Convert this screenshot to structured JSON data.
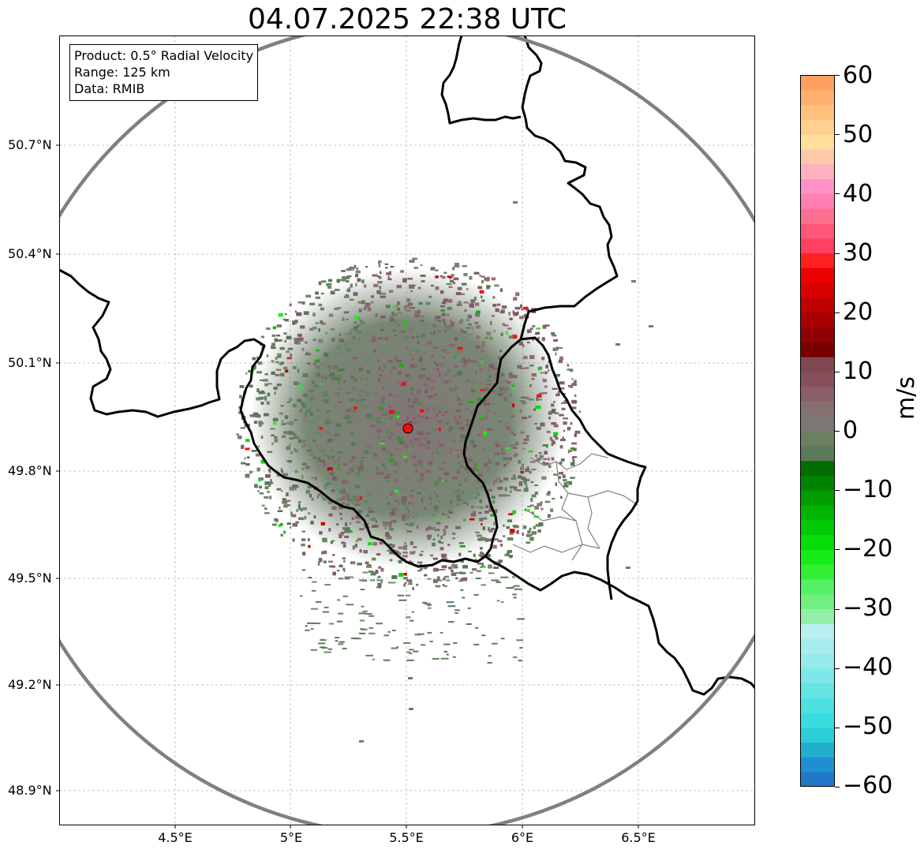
{
  "title": "04.07.2025 22:38 UTC",
  "info_box": {
    "product": "Product: 0.5° Radial Velocity",
    "range": "Range: 125 km",
    "source": "Data: RMIB"
  },
  "axes": {
    "lon_ticks": [
      "4.5°E",
      "5°E",
      "5.5°E",
      "6°E",
      "6.5°E"
    ],
    "lat_ticks": [
      "50.7°N",
      "50.4°N",
      "50.1°N",
      "49.8°N",
      "49.5°N",
      "49.2°N",
      "48.9°N"
    ],
    "lon_range": [
      4.0,
      7.0
    ],
    "lat_range": [
      48.8,
      51.0
    ],
    "grid": true
  },
  "radar": {
    "site_lon": 5.505,
    "site_lat": 49.914,
    "range_km": 125,
    "site_marker_color": "#ee1111"
  },
  "colorbar": {
    "label": "m/s",
    "min": -60,
    "max": 60,
    "ticks": [
      "60",
      "50",
      "40",
      "30",
      "20",
      "10",
      "0",
      "−10",
      "−20",
      "−30",
      "−40",
      "−50",
      "−60"
    ],
    "tick_values": [
      60,
      50,
      40,
      30,
      20,
      10,
      0,
      -10,
      -20,
      -30,
      -40,
      -50,
      -60
    ],
    "colors_bottom_to_top": [
      "#1f78c8",
      "#1e90d0",
      "#22aecd",
      "#2ccfd8",
      "#38dde0",
      "#4ee0e0",
      "#66e3e3",
      "#7ee7e7",
      "#95eaea",
      "#a8eded",
      "#b8f0f0",
      "#90f0a8",
      "#70f080",
      "#55f065",
      "#33f033",
      "#18ec18",
      "#08dc08",
      "#02ca02",
      "#00b400",
      "#009c00",
      "#008400",
      "#006e00",
      "#5a7a5a",
      "#6a8060",
      "#7a7872",
      "#857070",
      "#8a6068",
      "#86505a",
      "#804850",
      "#7a0000",
      "#900000",
      "#a80000",
      "#c00000",
      "#d80000",
      "#ee0000",
      "#ff2020",
      "#ff4060",
      "#ff5878",
      "#ff7090",
      "#ff80b0",
      "#ff90c8",
      "#ffb0c0",
      "#ffc8a8",
      "#ffe09c",
      "#ffd090",
      "#ffc080",
      "#ffb070",
      "#ffa060"
    ]
  },
  "colors": {
    "range_ring": "#808080",
    "borders": "#000000",
    "province_borders": "#808080",
    "echo_positive": "#86606e",
    "echo_negative": "#62805e"
  }
}
